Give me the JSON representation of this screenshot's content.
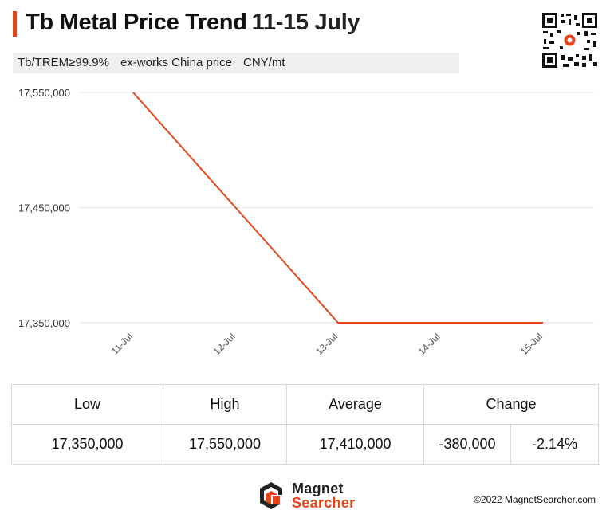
{
  "header": {
    "title_main": "Tb Metal  Price Trend",
    "title_range": "11-15 July",
    "subtitle_items": [
      "Tb/TREM≥99.9%",
      "ex-works China price",
      "CNY/mt"
    ]
  },
  "chart_data": {
    "type": "line",
    "categories": [
      "11-Jul",
      "12-Jul",
      "13-Jul",
      "14-Jul",
      "15-Jul"
    ],
    "series": [
      {
        "values": [
          17550000,
          17450000,
          17350000,
          17350000,
          17350000
        ]
      }
    ],
    "y_ticks": [
      "17,350,000",
      "17,450,000",
      "17,550,000"
    ],
    "ylim": [
      17350000,
      17550000
    ],
    "grid": true,
    "line_color": "#e8441c"
  },
  "stats": {
    "headers": {
      "low": "Low",
      "high": "High",
      "average": "Average",
      "change": "Change"
    },
    "values": {
      "low": "17,350,000",
      "high": "17,550,000",
      "average": "17,410,000",
      "change_abs": "-380,000",
      "change_pct": "-2.14%"
    }
  },
  "footer": {
    "logo_line1": "Magnet",
    "logo_line2": "Searcher",
    "copyright": "©2022 MagnetSearcher.com"
  },
  "colors": {
    "accent": "#e8441c",
    "grid": "#e3e3e3"
  }
}
